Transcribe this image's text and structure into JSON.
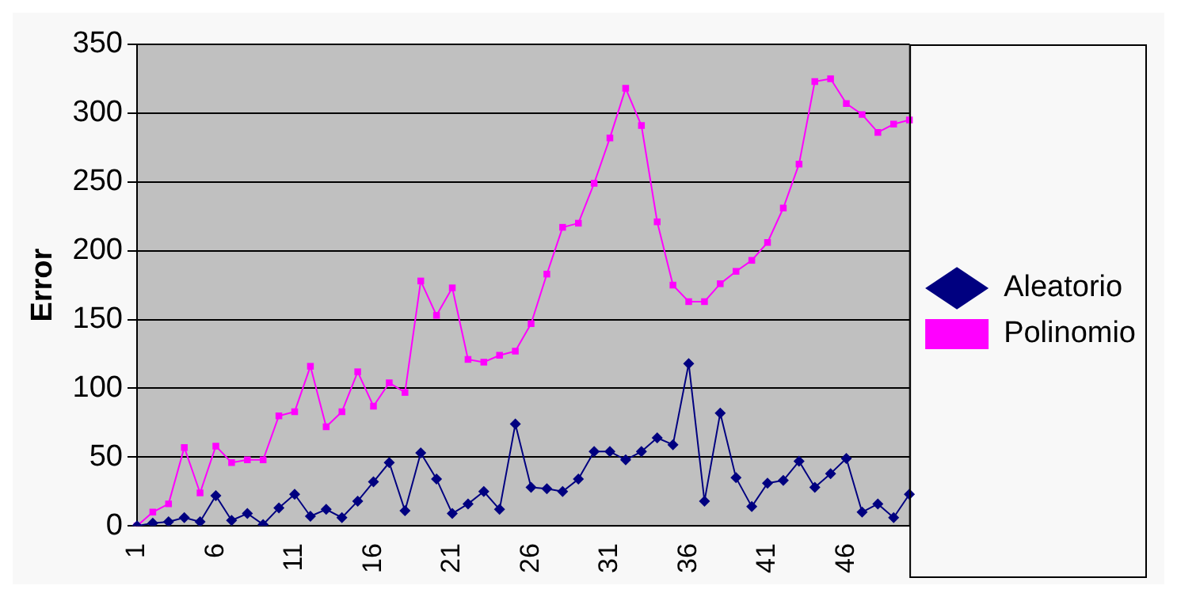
{
  "chart_data": {
    "type": "line",
    "ylabel": "Error",
    "categories": [
      "1",
      null,
      null,
      null,
      null,
      "6",
      null,
      null,
      null,
      null,
      "11",
      null,
      null,
      null,
      null,
      "16",
      null,
      null,
      null,
      null,
      "21",
      null,
      null,
      null,
      null,
      "26",
      null,
      null,
      null,
      null,
      "31",
      null,
      null,
      null,
      null,
      "36",
      null,
      null,
      null,
      null,
      "41",
      null,
      null,
      null,
      null,
      "46",
      null,
      null,
      null,
      null
    ],
    "series": [
      {
        "name": "Aleatorio",
        "color": "#000080",
        "marker": "diamond",
        "values": [
          0,
          2,
          3,
          6,
          3,
          22,
          4,
          9,
          1,
          13,
          23,
          7,
          12,
          6,
          18,
          32,
          46,
          11,
          53,
          34,
          9,
          16,
          25,
          12,
          74,
          28,
          27,
          25,
          34,
          54,
          54,
          48,
          54,
          64,
          59,
          118,
          18,
          82,
          35,
          14,
          31,
          33,
          47,
          28,
          38,
          49,
          10,
          16,
          6,
          23
        ]
      },
      {
        "name": "Polinomio",
        "color": "#ff00ff",
        "marker": "square",
        "values": [
          0,
          10,
          16,
          57,
          24,
          58,
          46,
          48,
          48,
          80,
          83,
          116,
          72,
          83,
          112,
          87,
          104,
          97,
          178,
          153,
          173,
          121,
          119,
          124,
          127,
          147,
          183,
          217,
          220,
          249,
          282,
          318,
          291,
          221,
          175,
          163,
          163,
          176,
          185,
          193,
          206,
          231,
          263,
          323,
          325,
          307,
          299,
          286,
          292,
          295
        ]
      }
    ],
    "ylim": [
      0,
      350
    ],
    "yticks": [
      0,
      50,
      100,
      150,
      200,
      250,
      300,
      350
    ],
    "grid": "y",
    "legend": "right",
    "line_style": "solid"
  }
}
